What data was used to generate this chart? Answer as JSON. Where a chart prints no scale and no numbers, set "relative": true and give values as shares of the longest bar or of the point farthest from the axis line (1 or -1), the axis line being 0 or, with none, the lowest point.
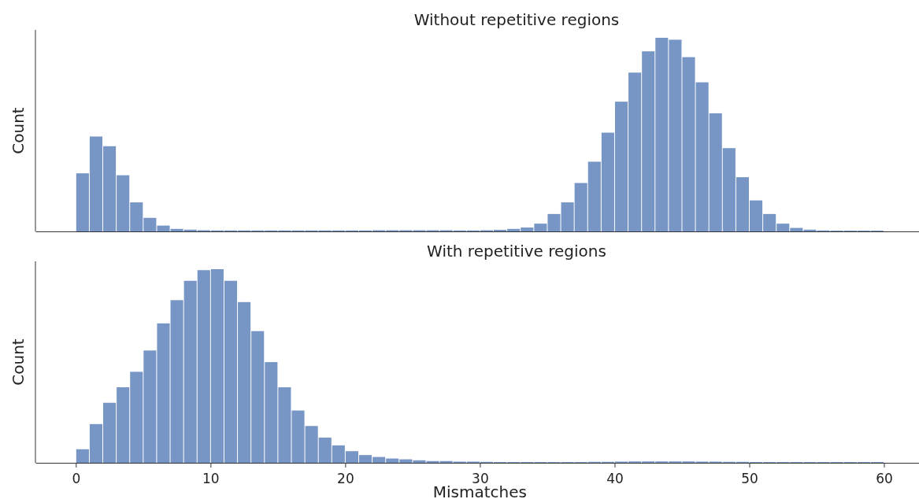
{
  "chart_data": [
    {
      "type": "bar",
      "title": "Without repetitive regions",
      "ylabel": "Count",
      "relative": true,
      "color": "#7796c5",
      "xlim": [
        -3,
        62.6
      ],
      "xticks": [
        0,
        10,
        20,
        30,
        40,
        50,
        60
      ],
      "tick_labels": false,
      "x": [
        0.5,
        1.5,
        2.5,
        3.5,
        4.5,
        5.5,
        6.5,
        7.5,
        8.5,
        9.5,
        10.5,
        11.5,
        12.5,
        13.5,
        14.5,
        15.5,
        16.5,
        17.5,
        18.5,
        19.5,
        20.5,
        21.5,
        22.5,
        23.5,
        24.5,
        25.5,
        26.5,
        27.5,
        28.5,
        29.5,
        30.5,
        31.5,
        32.5,
        33.5,
        34.5,
        35.5,
        36.5,
        37.5,
        38.5,
        39.5,
        40.5,
        41.5,
        42.5,
        43.5,
        44.5,
        45.5,
        46.5,
        47.5,
        48.5,
        49.5,
        50.5,
        51.5,
        52.5,
        53.5,
        54.5,
        55.5,
        56.5,
        57.5,
        58.5,
        59.5
      ],
      "values": [
        0.3,
        0.49,
        0.44,
        0.29,
        0.15,
        0.07,
        0.03,
        0.013,
        0.009,
        0.006,
        0.005,
        0.005,
        0.005,
        0.005,
        0.005,
        0.005,
        0.005,
        0.005,
        0.005,
        0.005,
        0.005,
        0.005,
        0.006,
        0.006,
        0.006,
        0.006,
        0.006,
        0.006,
        0.005,
        0.005,
        0.006,
        0.008,
        0.013,
        0.02,
        0.04,
        0.09,
        0.15,
        0.25,
        0.36,
        0.51,
        0.67,
        0.82,
        0.93,
        1.0,
        0.99,
        0.9,
        0.77,
        0.61,
        0.43,
        0.28,
        0.16,
        0.09,
        0.04,
        0.018,
        0.009,
        0.005,
        0.004,
        0.004,
        0.004,
        0.004
      ]
    },
    {
      "type": "bar",
      "title": "With repetitive regions",
      "ylabel": "Count",
      "xlabel": "Mismatches",
      "relative": true,
      "color": "#7796c5",
      "xlim": [
        -3,
        62.6
      ],
      "xticks": [
        0,
        10,
        20,
        30,
        40,
        50,
        60
      ],
      "tick_labels": "x",
      "x": [
        0.5,
        1.5,
        2.5,
        3.5,
        4.5,
        5.5,
        6.5,
        7.5,
        8.5,
        9.5,
        10.5,
        11.5,
        12.5,
        13.5,
        14.5,
        15.5,
        16.5,
        17.5,
        18.5,
        19.5,
        20.5,
        21.5,
        22.5,
        23.5,
        24.5,
        25.5,
        26.5,
        27.5,
        28.5,
        29.5,
        30.5,
        31.5,
        32.5,
        33.5,
        34.5,
        35.5,
        36.5,
        37.5,
        38.5,
        39.5,
        40.5,
        41.5,
        42.5,
        43.5,
        44.5,
        45.5,
        46.5,
        47.5,
        48.5,
        49.5,
        50.5,
        51.5,
        52.5,
        53.5,
        54.5,
        55.5,
        56.5,
        57.5,
        58.5,
        59.5
      ],
      "values": [
        0.07,
        0.2,
        0.31,
        0.39,
        0.47,
        0.58,
        0.72,
        0.84,
        0.94,
        0.995,
        1.0,
        0.94,
        0.83,
        0.68,
        0.52,
        0.39,
        0.27,
        0.19,
        0.13,
        0.09,
        0.06,
        0.04,
        0.03,
        0.022,
        0.018,
        0.013,
        0.009,
        0.009,
        0.006,
        0.006,
        0.005,
        0.004,
        0.004,
        0.004,
        0.004,
        0.004,
        0.004,
        0.004,
        0.005,
        0.005,
        0.006,
        0.007,
        0.007,
        0.007,
        0.007,
        0.007,
        0.006,
        0.006,
        0.005,
        0.005,
        0.004,
        0.004,
        0.004,
        0.004,
        0.004,
        0.004,
        0.004,
        0.004,
        0.004,
        0.004
      ]
    }
  ]
}
